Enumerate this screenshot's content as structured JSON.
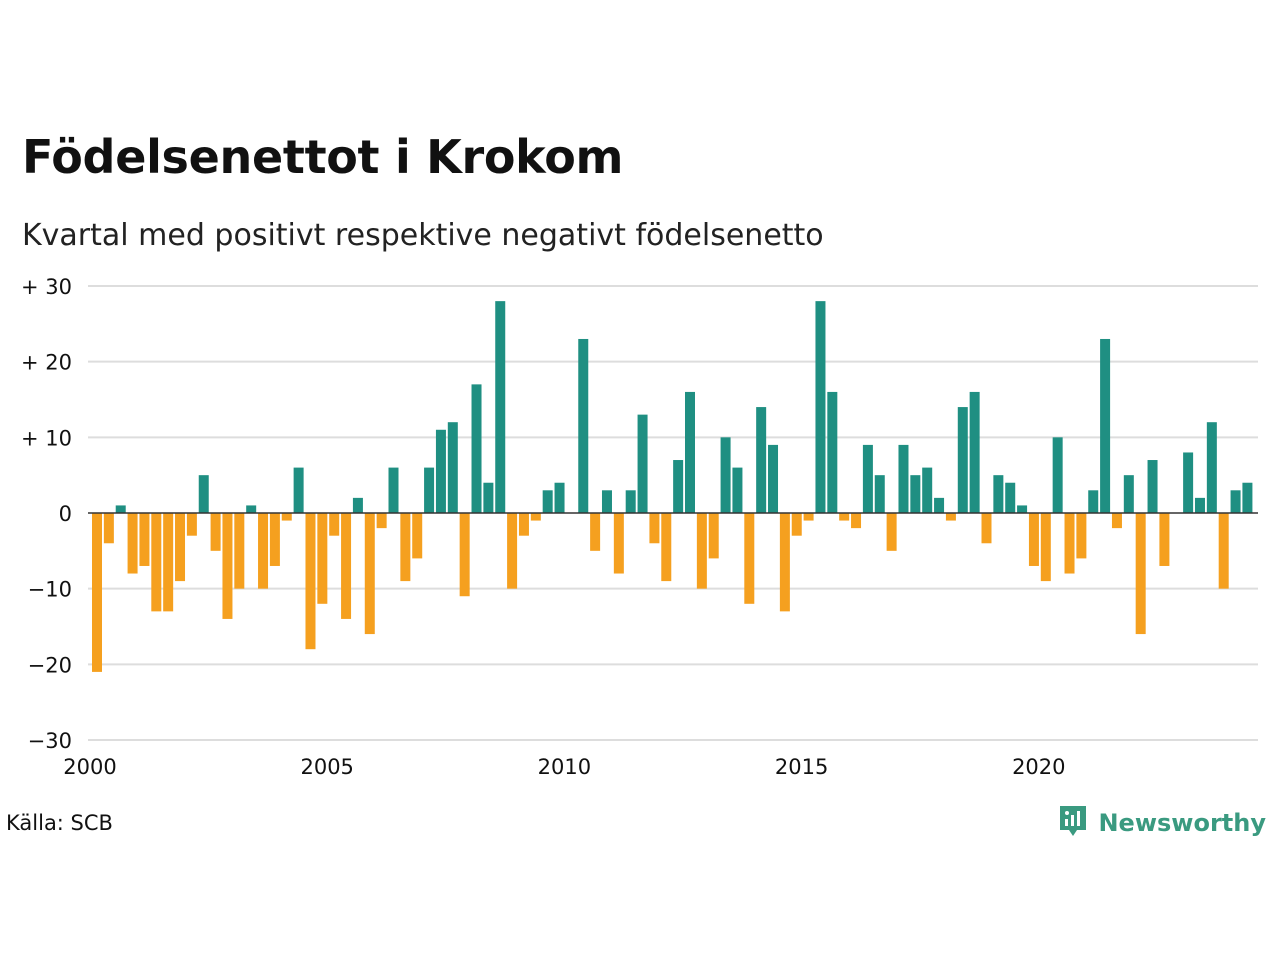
{
  "title": "Födelsenettot i Krokom",
  "subtitle": "Kvartal med positivt respektive negativt födelsenetto",
  "source": "Källa: SCB",
  "brand": {
    "name": "Newsworthy",
    "icon": "newsworthy-logo-icon"
  },
  "colors": {
    "positive": "#1f8f82",
    "negative": "#f5a01f",
    "grid": "#dddddd",
    "baseline": "#333333",
    "text": "#111111",
    "brand": "#3a9a80"
  },
  "chart_data": {
    "type": "bar",
    "title": "Födelsenettot i Krokom",
    "subtitle": "Kvartal med positivt respektive negativt födelsenetto",
    "xlabel": "",
    "ylabel": "",
    "ylim": [
      -30,
      30
    ],
    "yticks": [
      30,
      20,
      10,
      0,
      -10,
      -20,
      -30
    ],
    "ytick_labels": [
      "+ 30",
      "+ 20",
      "+ 10",
      "0",
      "−10",
      "−20",
      "−30"
    ],
    "xticks": [
      2000,
      2005,
      2010,
      2015,
      2020
    ],
    "xtick_labels": [
      "2000",
      "2005",
      "2010",
      "2015",
      "2020"
    ],
    "grid": true,
    "legend": "none",
    "series": [
      {
        "values": [
          -21,
          -4,
          1,
          -8,
          -7,
          -13,
          -13,
          -9,
          -3,
          5,
          -5,
          -14,
          -10,
          1,
          -10,
          -7,
          -1,
          6,
          -18,
          -12,
          -3,
          -14,
          2,
          -16,
          -2,
          6,
          -9,
          -6,
          6,
          11,
          12,
          -11,
          17,
          4,
          28,
          -10,
          -3,
          -1,
          3,
          4,
          0,
          23,
          -5,
          3,
          -8,
          3,
          13,
          -4,
          -9,
          7,
          16,
          -10,
          -6,
          10,
          6,
          -12,
          14,
          9,
          -13,
          -3,
          -1,
          28,
          16,
          -1,
          -2,
          9,
          5,
          -5,
          9,
          5,
          6,
          2,
          -1,
          14,
          16,
          -4,
          5,
          4,
          1,
          -7,
          -9,
          10,
          -8,
          -6,
          3,
          23,
          -2,
          5,
          -16,
          7,
          -7,
          0,
          8,
          2,
          12,
          -10,
          3,
          4
        ]
      }
    ]
  }
}
